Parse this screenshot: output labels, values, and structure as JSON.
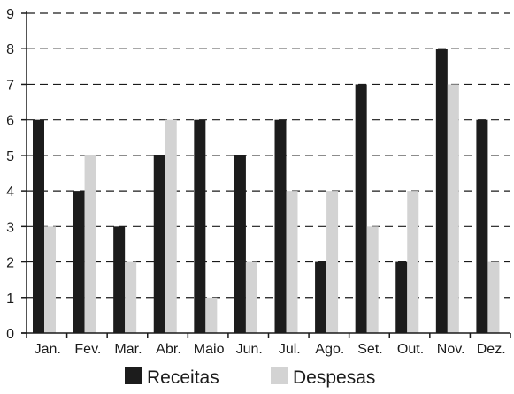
{
  "chart_data": {
    "type": "bar",
    "title": "",
    "xlabel": "",
    "ylabel": "",
    "categories": [
      "Jan.",
      "Fev.",
      "Mar.",
      "Abr.",
      "Maio",
      "Jun.",
      "Jul.",
      "Ago.",
      "Set.",
      "Out.",
      "Nov.",
      "Dez."
    ],
    "series": [
      {
        "name": "Receitas",
        "values": [
          6,
          4,
          3,
          5,
          6,
          5,
          6,
          2,
          7,
          2,
          8,
          6
        ],
        "color": "#1c1c1c"
      },
      {
        "name": "Despesas",
        "values": [
          3,
          5,
          2,
          6,
          1,
          2,
          4,
          4,
          3,
          4,
          7,
          2
        ],
        "color": "#d3d3d3"
      }
    ],
    "ylim": [
      0,
      9
    ],
    "yticks": [
      "0",
      "1",
      "2",
      "3",
      "4",
      "5",
      "6",
      "7",
      "8",
      "9"
    ],
    "grid": "horizontal dashed",
    "legend_position": "bottom"
  }
}
